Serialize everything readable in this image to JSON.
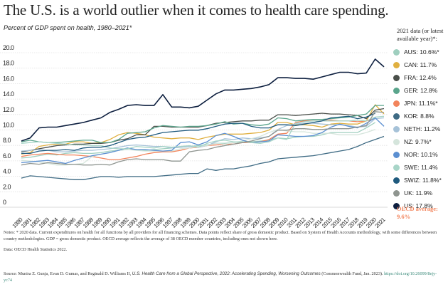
{
  "title": "The U.S. is a world outlier when it comes to health care spending.",
  "subtitle": "Percent of GDP spent on health, 1980–2021*",
  "legend_title": "2021 data (or latest available year)*:",
  "oecd_label": "OECD average:",
  "oecd_value": "9.6%",
  "notes": "Notes: * 2020 data. Current expenditures on health for all functions by all providers for all financing schemes. Data points reflect share of gross domestic product. Based on System of Health Accounts methodology, with some differences between country methodologies. GDP = gross domestic product. OECD average reflects the average of 38 OECD member countries, including ones not shown here.",
  "data_source": "Data: OECD Health Statistics 2022.",
  "source_prefix": "Source: Munira Z. Gunja, Evan D. Gumas, and Reginald D. Williams II, ",
  "source_title": "U.S. Health Care from a Global Perspective, 2022: Accelerating Spending, Worsening Outcomes",
  "source_suffix": " (Commonwealth Fund, Jan. 2023). ",
  "source_doi": "https://doi.org/10.26099/8ejy-yc74",
  "chart_data": {
    "type": "line",
    "title": "Percent of GDP spent on health, 1980–2021*",
    "xlabel": "",
    "ylabel": "",
    "ylim": [
      0,
      20
    ],
    "yticks": [
      "0",
      "2.0",
      "4.0",
      "6.0",
      "8.0",
      "10.0",
      "12.0",
      "14.0",
      "16.0",
      "18.0",
      "20.0"
    ],
    "ytick_values": [
      0,
      2,
      4,
      6,
      8,
      10,
      12,
      14,
      16,
      18,
      20
    ],
    "grid": true,
    "legend_position": "right",
    "x": [
      "1980",
      "1981",
      "1982",
      "1983",
      "1984",
      "1985",
      "1986",
      "1987",
      "1988",
      "1989",
      "1990",
      "1991",
      "1992",
      "1993",
      "1994",
      "1995",
      "1996",
      "1997",
      "1998",
      "1999",
      "2000",
      "2001",
      "2002",
      "2003",
      "2004",
      "2005",
      "2006",
      "2007",
      "2008",
      "2009",
      "2010",
      "2011",
      "2012",
      "2013",
      "2014",
      "2015",
      "2016",
      "2017",
      "2018",
      "2019",
      "2020",
      "2021"
    ],
    "series": [
      {
        "name": "AUS",
        "label": "AUS: 10.6%*",
        "color": "#9fcfbf",
        "values": [
          6.0,
          6.1,
          6.3,
          6.5,
          6.4,
          6.6,
          6.7,
          6.6,
          6.6,
          6.7,
          6.9,
          7.0,
          7.1,
          7.1,
          7.0,
          7.1,
          7.2,
          7.3,
          7.4,
          7.5,
          7.6,
          7.7,
          7.9,
          7.9,
          8.0,
          8.1,
          8.1,
          8.2,
          8.3,
          8.6,
          8.5,
          8.7,
          8.8,
          8.8,
          9.0,
          9.3,
          9.3,
          9.3,
          9.3,
          9.9,
          10.6,
          null
        ]
      },
      {
        "name": "CAN",
        "label": "CAN: 11.7%",
        "color": "#e0b040",
        "values": [
          6.5,
          6.7,
          7.5,
          7.7,
          7.8,
          7.8,
          8.1,
          8.1,
          7.9,
          8.0,
          8.4,
          9.0,
          9.3,
          9.2,
          9.0,
          8.7,
          8.6,
          8.5,
          8.6,
          8.6,
          8.4,
          8.7,
          8.9,
          9.1,
          9.1,
          9.1,
          9.2,
          9.3,
          9.6,
          10.6,
          10.6,
          10.3,
          10.3,
          10.2,
          10.0,
          10.4,
          10.5,
          10.4,
          10.4,
          10.8,
          12.9,
          11.7
        ]
      },
      {
        "name": "FRA",
        "label": "FRA: 12.4%",
        "color": "#4a4f4a",
        "values": [
          6.8,
          7.0,
          7.2,
          7.4,
          7.6,
          7.7,
          7.8,
          7.8,
          7.9,
          7.9,
          8.0,
          8.3,
          8.5,
          9.0,
          9.0,
          10.1,
          10.1,
          10.0,
          10.0,
          10.0,
          10.0,
          10.2,
          10.5,
          10.6,
          10.7,
          10.8,
          10.8,
          10.9,
          10.9,
          11.6,
          11.6,
          11.5,
          11.6,
          11.7,
          11.8,
          11.7,
          11.7,
          11.6,
          11.5,
          11.1,
          12.2,
          12.4
        ]
      },
      {
        "name": "GER",
        "label": "GER: 12.8%",
        "color": "#5aa58c",
        "values": [
          8.1,
          8.3,
          8.1,
          8.0,
          8.0,
          8.1,
          8.2,
          8.3,
          8.3,
          8.0,
          8.0,
          8.4,
          9.2,
          9.3,
          9.4,
          9.9,
          10.2,
          10.1,
          10.0,
          10.1,
          10.1,
          10.2,
          10.4,
          10.7,
          10.4,
          10.5,
          10.3,
          10.2,
          10.4,
          11.2,
          11.1,
          10.8,
          10.9,
          11.0,
          11.0,
          11.1,
          11.2,
          11.3,
          11.5,
          11.7,
          12.8,
          12.8
        ]
      },
      {
        "name": "JPN",
        "label": "JPN: 11.1%*",
        "color": "#f2845c",
        "values": [
          6.2,
          6.4,
          6.5,
          6.6,
          6.5,
          6.4,
          6.4,
          6.3,
          6.2,
          6.0,
          5.8,
          5.8,
          6.0,
          6.2,
          6.5,
          6.7,
          6.8,
          6.8,
          7.0,
          7.3,
          7.4,
          7.6,
          7.7,
          7.8,
          7.8,
          8.0,
          8.0,
          8.1,
          8.4,
          9.1,
          9.2,
          10.6,
          10.8,
          10.8,
          10.8,
          10.9,
          10.8,
          10.8,
          10.7,
          10.8,
          11.1,
          null
        ]
      },
      {
        "name": "KOR",
        "label": "KOR: 8.8%",
        "color": "#3f6b84",
        "values": [
          3.4,
          3.7,
          3.6,
          3.5,
          3.4,
          3.3,
          3.2,
          3.2,
          3.4,
          3.6,
          3.6,
          3.5,
          3.6,
          3.6,
          3.6,
          3.6,
          3.7,
          3.8,
          3.9,
          4.0,
          4.0,
          4.6,
          4.4,
          4.6,
          4.6,
          4.8,
          5.0,
          5.3,
          5.5,
          5.9,
          6.0,
          6.1,
          6.2,
          6.3,
          6.5,
          6.7,
          6.9,
          7.1,
          7.5,
          8.0,
          8.4,
          8.8
        ]
      },
      {
        "name": "NETH",
        "label": "NETH: 11.2%",
        "color": "#a6c2d8",
        "values": [
          6.9,
          7.0,
          7.1,
          7.0,
          6.8,
          6.8,
          6.9,
          7.0,
          7.0,
          7.1,
          7.2,
          7.4,
          7.6,
          7.7,
          7.6,
          7.5,
          7.5,
          7.3,
          7.4,
          7.5,
          7.4,
          7.6,
          8.1,
          8.5,
          8.4,
          8.6,
          8.5,
          8.6,
          8.8,
          9.7,
          10.2,
          10.4,
          10.5,
          10.5,
          10.4,
          10.3,
          10.3,
          10.2,
          10.0,
          10.1,
          11.1,
          11.2
        ]
      },
      {
        "name": "NZ",
        "label": "NZ: 9.7%*",
        "color": "#d5e5dc",
        "values": [
          5.7,
          5.6,
          5.5,
          5.3,
          5.1,
          5.1,
          5.2,
          5.3,
          6.2,
          6.5,
          6.7,
          7.0,
          7.1,
          7.0,
          6.9,
          6.9,
          6.9,
          6.9,
          7.2,
          7.3,
          7.5,
          7.6,
          7.9,
          7.8,
          8.0,
          8.2,
          8.5,
          8.8,
          9.3,
          9.7,
          9.5,
          9.4,
          9.4,
          9.2,
          9.2,
          9.2,
          9.0,
          9.0,
          9.0,
          9.3,
          9.7,
          null
        ]
      },
      {
        "name": "NOR",
        "label": "NOR: 10.1%",
        "color": "#5b8fd1",
        "values": [
          5.4,
          5.5,
          5.6,
          5.7,
          5.5,
          5.3,
          5.7,
          6.0,
          6.3,
          6.5,
          6.7,
          7.0,
          7.3,
          7.1,
          7.1,
          7.0,
          6.9,
          7.0,
          8.0,
          8.1,
          7.7,
          8.1,
          8.9,
          9.2,
          8.8,
          8.3,
          8.0,
          8.1,
          8.2,
          9.0,
          8.9,
          8.8,
          8.8,
          8.9,
          9.3,
          10.0,
          10.4,
          10.1,
          9.9,
          10.5,
          11.2,
          10.1
        ]
      },
      {
        "name": "SWE",
        "label": "SWE: 11.4%",
        "color": "#a8d5c8",
        "values": [
          7.9,
          8.0,
          8.1,
          8.0,
          7.9,
          7.8,
          7.7,
          7.7,
          7.6,
          7.6,
          7.3,
          7.2,
          7.2,
          7.5,
          7.4,
          7.3,
          7.5,
          7.4,
          7.5,
          7.6,
          7.4,
          7.9,
          8.2,
          8.3,
          8.1,
          8.1,
          8.0,
          7.9,
          8.1,
          8.6,
          8.4,
          10.5,
          10.7,
          10.8,
          10.8,
          10.8,
          10.8,
          10.8,
          10.9,
          10.8,
          11.3,
          11.4
        ]
      },
      {
        "name": "SWIZ",
        "label": "SWIZ: 11.8%*",
        "color": "#1f5a7e",
        "values": [
          6.6,
          6.6,
          6.9,
          7.0,
          7.0,
          7.1,
          7.0,
          7.3,
          7.4,
          7.4,
          7.6,
          8.0,
          8.4,
          8.6,
          8.7,
          9.0,
          9.3,
          9.4,
          9.5,
          9.6,
          9.6,
          9.8,
          10.1,
          10.4,
          10.5,
          10.5,
          10.1,
          9.9,
          9.9,
          10.3,
          10.3,
          10.2,
          10.4,
          10.6,
          10.8,
          11.2,
          11.3,
          11.4,
          11.1,
          11.3,
          11.8,
          null
        ]
      },
      {
        "name": "UK",
        "label": "UK: 11.9%",
        "color": "#8f9590",
        "values": [
          5.1,
          5.3,
          5.2,
          5.4,
          5.3,
          5.2,
          5.2,
          5.1,
          5.1,
          5.2,
          5.1,
          5.5,
          5.8,
          5.9,
          5.8,
          5.8,
          5.8,
          5.6,
          5.6,
          6.8,
          7.0,
          7.1,
          7.4,
          7.6,
          7.8,
          8.0,
          8.2,
          8.5,
          8.8,
          9.6,
          9.6,
          9.8,
          9.8,
          9.7,
          9.7,
          9.8,
          9.8,
          9.8,
          10.0,
          10.2,
          12.0,
          11.9
        ]
      },
      {
        "name": "US",
        "label": "US: 17.8%",
        "color": "#0d1f3f",
        "values": [
          8.2,
          8.6,
          9.9,
          10.0,
          10.0,
          10.2,
          10.4,
          10.6,
          10.9,
          11.2,
          11.9,
          12.3,
          12.8,
          12.9,
          12.8,
          12.8,
          14.2,
          12.6,
          12.6,
          12.5,
          12.7,
          13.5,
          14.3,
          14.8,
          14.8,
          14.9,
          15.0,
          15.2,
          15.5,
          16.4,
          16.4,
          16.3,
          16.3,
          16.2,
          16.5,
          16.8,
          17.1,
          17.1,
          16.9,
          17.0,
          18.8,
          17.8
        ]
      }
    ]
  }
}
